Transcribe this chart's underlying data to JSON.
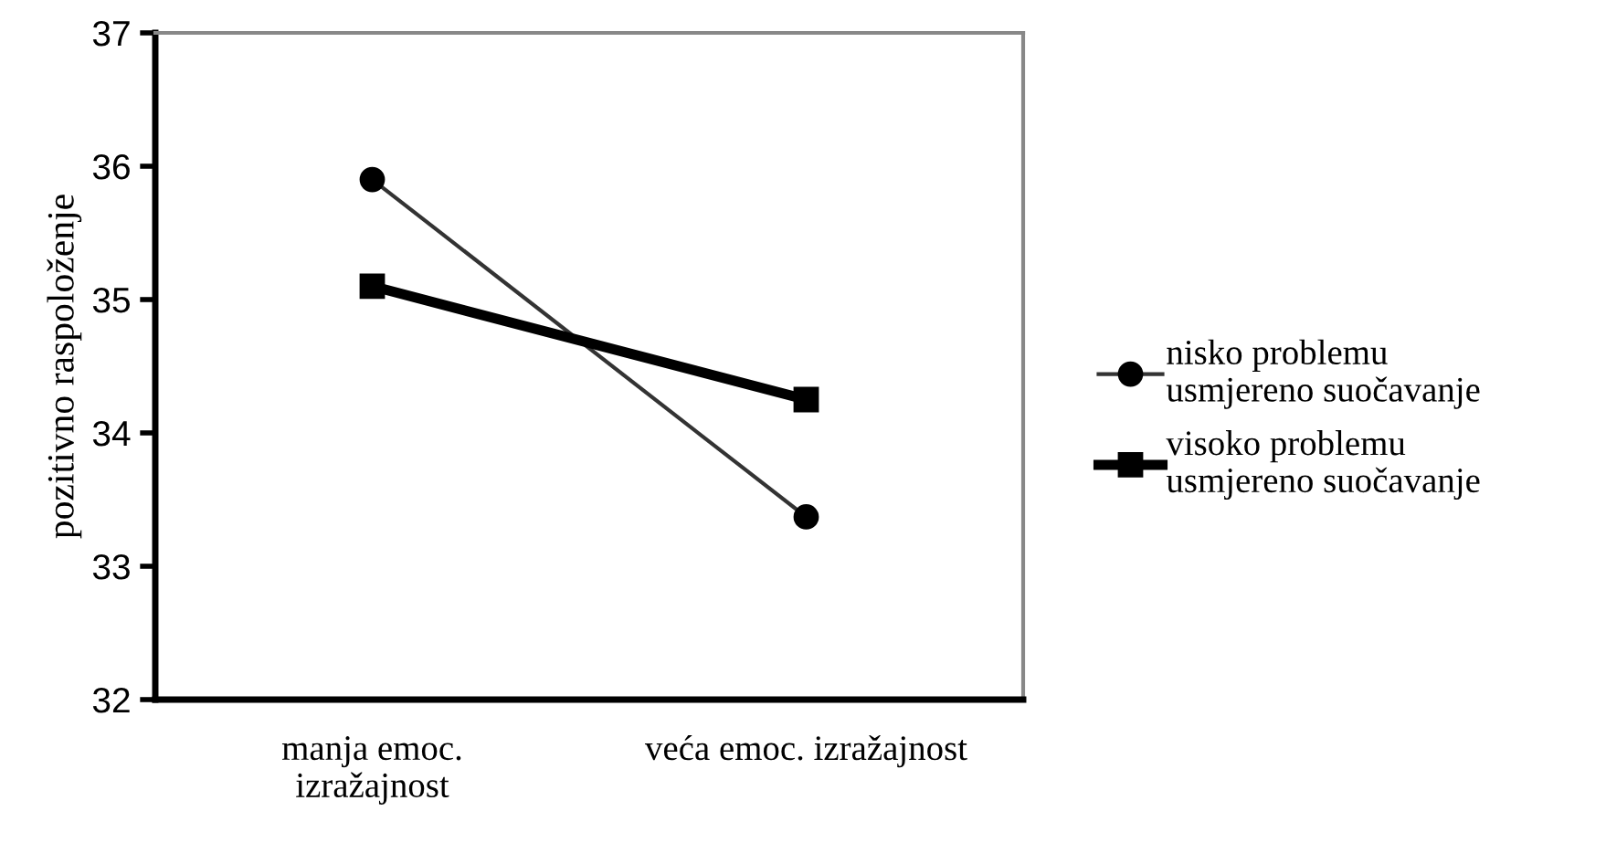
{
  "chart_data": {
    "type": "line",
    "ylabel": "pozitivno raspoloženje",
    "categories": [
      "manja emoc.\nizražajnost",
      "veća emoc. izražajnost"
    ],
    "series": [
      {
        "name": "nisko problemu\nusmjereno suočavanje",
        "color": "#333333",
        "marker": "circle",
        "values": [
          35.9,
          33.37
        ]
      },
      {
        "name": "visoko problemu\nusmjereno suočavanje",
        "color": "#000000",
        "marker": "square",
        "values": [
          35.1,
          34.25
        ]
      }
    ],
    "ylim": [
      32,
      37
    ],
    "yticks": [
      32,
      33,
      34,
      35,
      36,
      37
    ],
    "grid": false,
    "legend": "right"
  }
}
